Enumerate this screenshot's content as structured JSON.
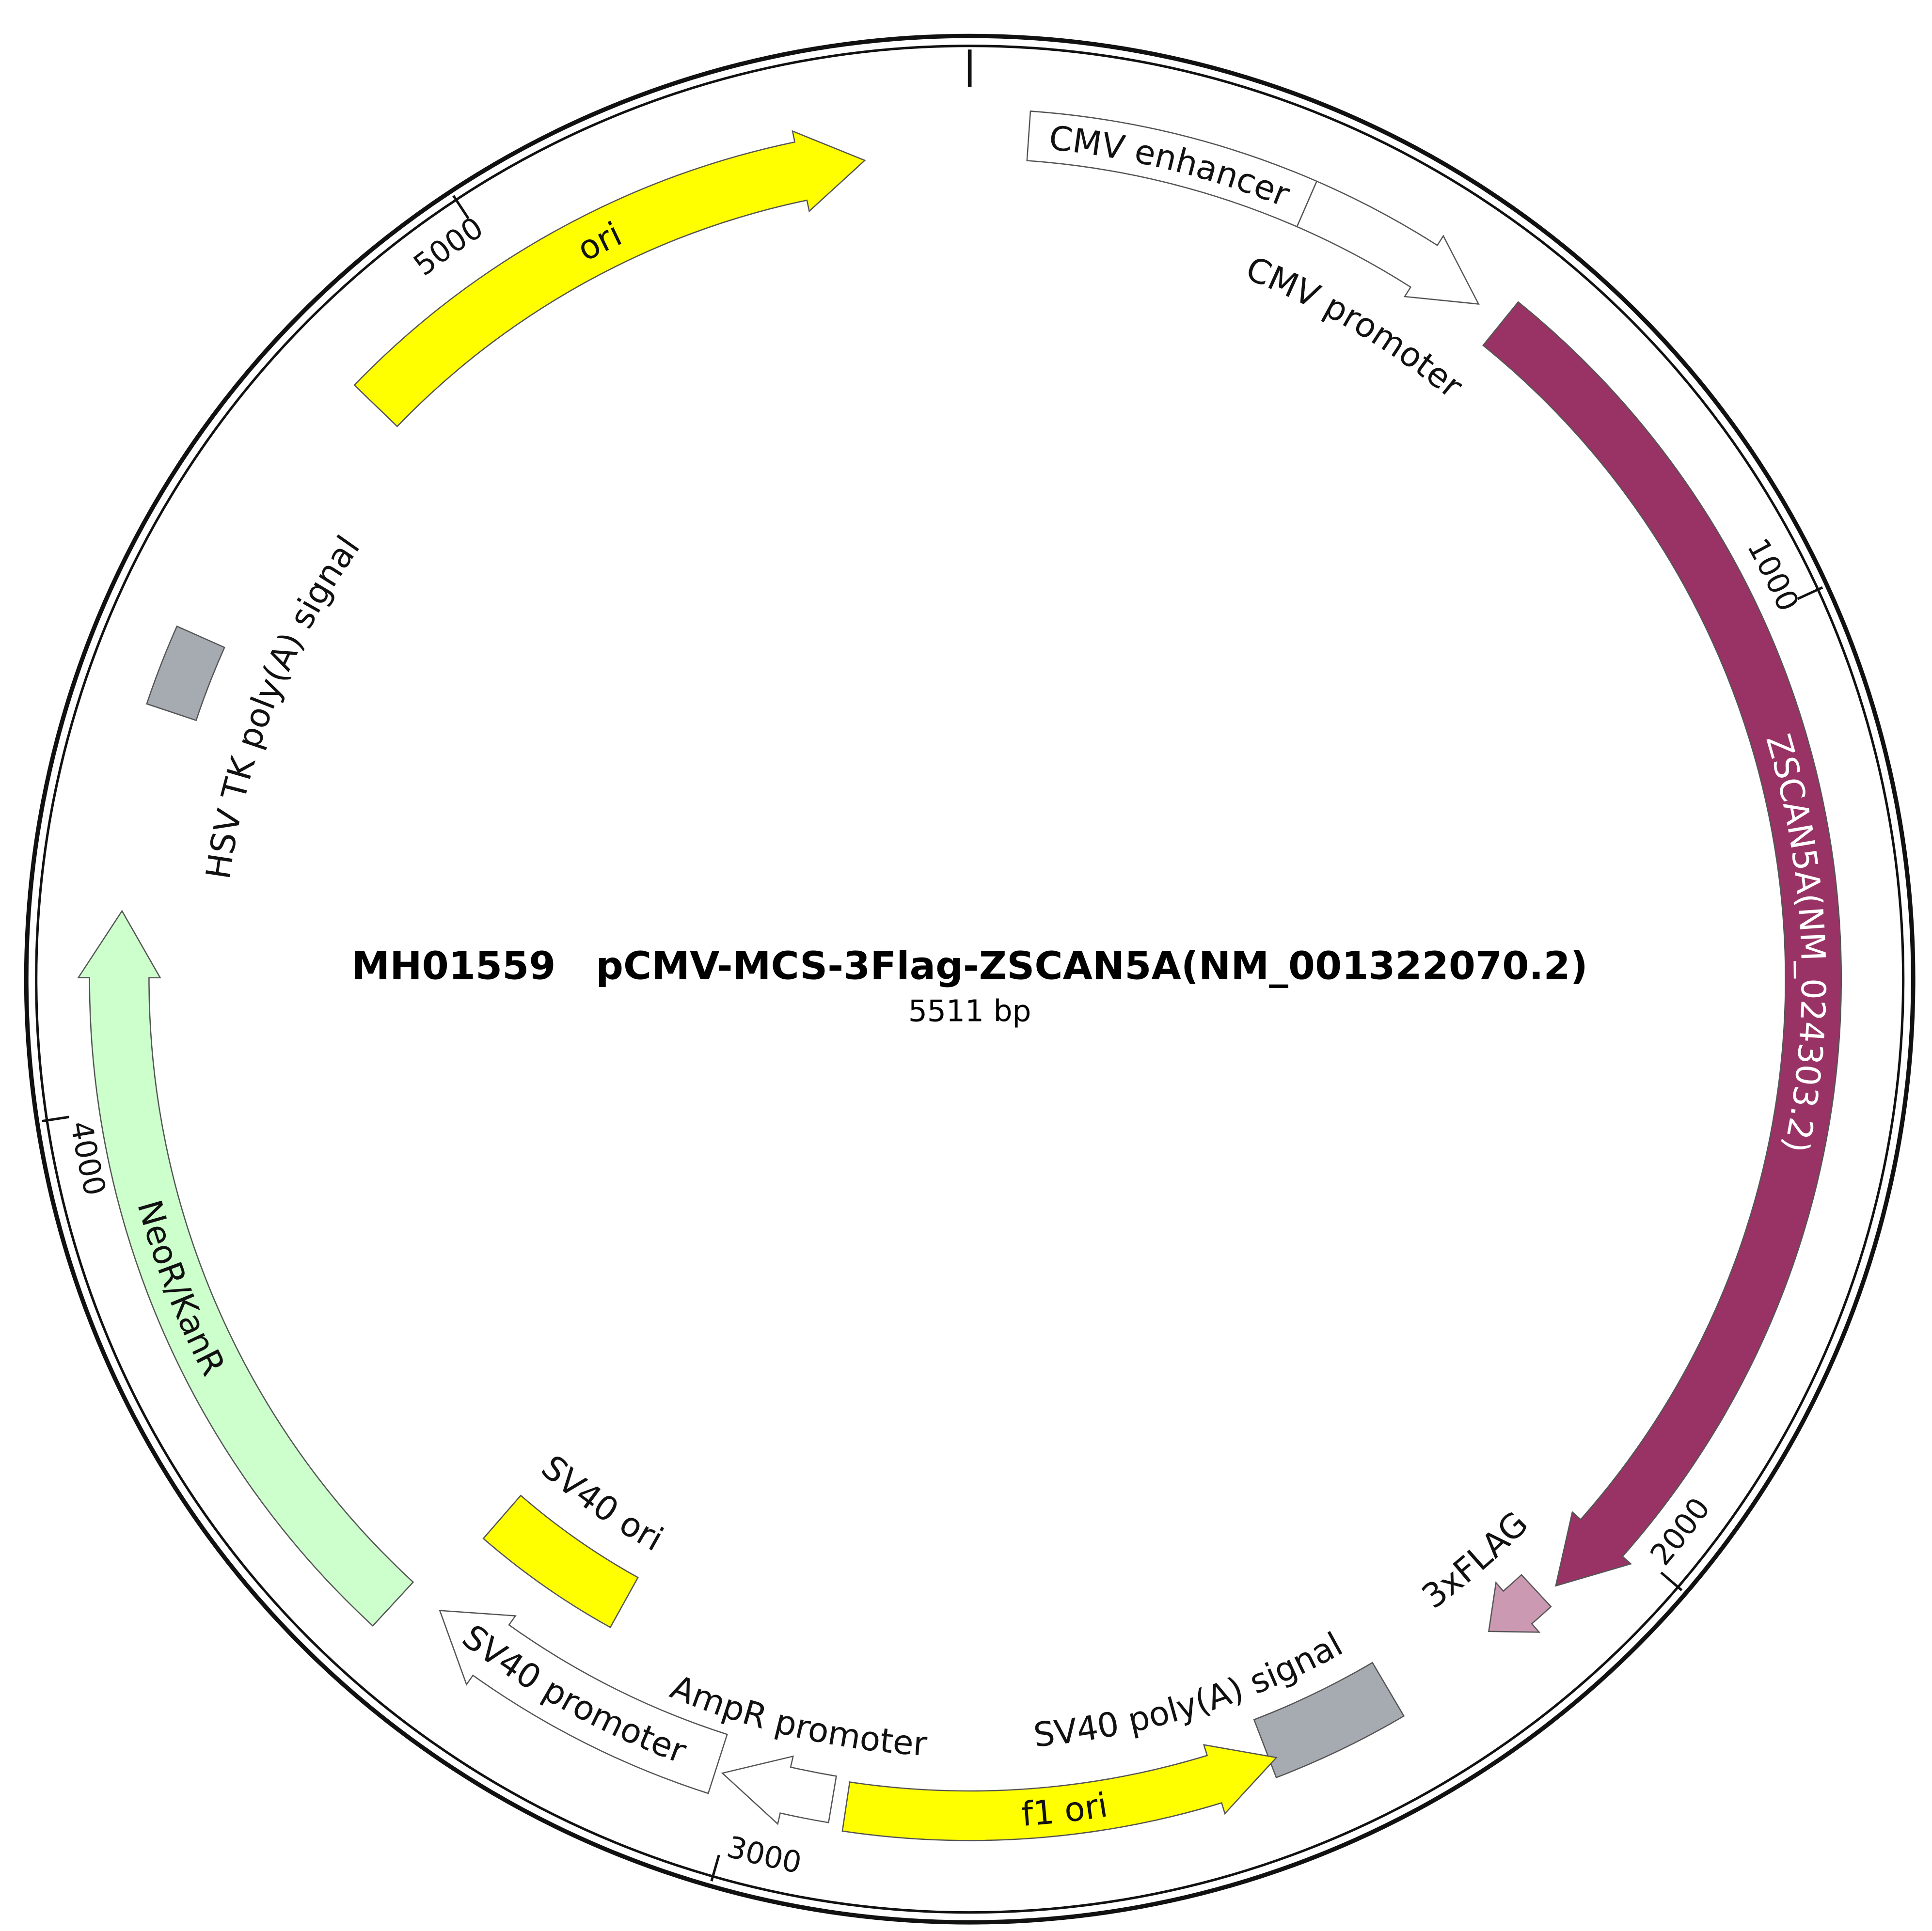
{
  "title": "MH01559   pCMV-MCS-3Flag-ZSCAN5A(NM_001322070.2)",
  "subtitle": "5511 bp",
  "ticks": [
    1000,
    2000,
    3000,
    4000,
    5000
  ],
  "features": [
    {
      "label": "CMV enhancer",
      "color": "#ffffff"
    },
    {
      "label": "CMV promoter",
      "color": "#ffffff"
    },
    {
      "label": "ZSCAN5A(NM_024303.2)",
      "color": "#993366"
    },
    {
      "label": "3xFLAG",
      "color": "#cc99b3"
    },
    {
      "label": "SV40 poly(A) signal",
      "color": "#a6abb2"
    },
    {
      "label": "f1 ori",
      "color": "#ffff00"
    },
    {
      "label": "AmpR promoter",
      "color": "#ffffff"
    },
    {
      "label": "SV40 promoter",
      "color": "#ffffff"
    },
    {
      "label": "SV40 ori",
      "color": "#ffff00"
    },
    {
      "label": "NeoR/KanR",
      "color": "#ccffcc"
    },
    {
      "label": "HSV TK poly(A) signal",
      "color": "#a6abb2"
    },
    {
      "label": "ori",
      "color": "#ffff00"
    }
  ]
}
